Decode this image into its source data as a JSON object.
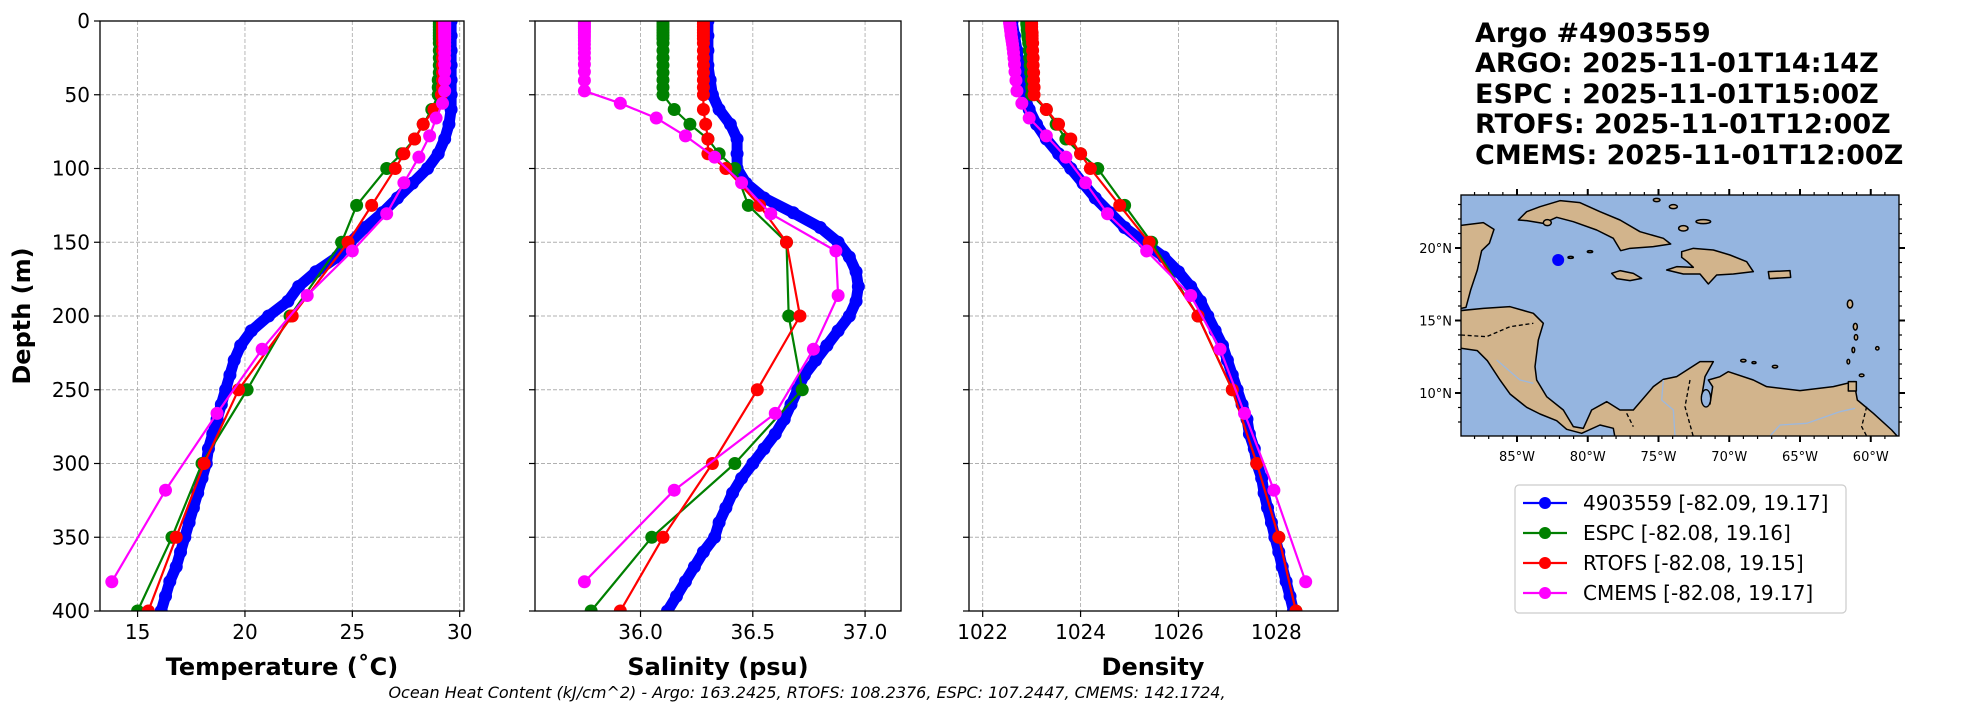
{
  "header": {
    "lines": [
      "Argo #4903559",
      "ARGO: 2025-11-01T14:14Z",
      "ESPC : 2025-11-01T15:00Z",
      "RTOFS: 2025-11-01T12:00Z",
      "CMEMS: 2025-11-01T12:00Z"
    ]
  },
  "caption": "Ocean Heat Content (kJ/cm^2) - Argo: 163.2425,  RTOFS: 108.2376,  ESPC: 107.2447,  CMEMS: 142.1724,",
  "legend": {
    "entries": [
      {
        "label": "4903559 [-82.09, 19.17]",
        "color": "#0000ff"
      },
      {
        "label": "ESPC [-82.08, 19.16]",
        "color": "#008000"
      },
      {
        "label": "RTOFS [-82.08, 19.15]",
        "color": "#ff0000"
      },
      {
        "label": "CMEMS [-82.08, 19.17]",
        "color": "#ff00ff"
      }
    ]
  },
  "map": {
    "lon_range": [
      -89.0,
      -58.0
    ],
    "lat_range": [
      7.0,
      23.7
    ],
    "lon_ticks": [
      -85,
      -80,
      -75,
      -70,
      -65,
      -60
    ],
    "lon_tick_labels": [
      "85°W",
      "80°W",
      "75°W",
      "70°W",
      "65°W",
      "60°W"
    ],
    "lat_ticks": [
      10,
      15,
      20
    ],
    "lat_tick_labels": [
      "10°N",
      "15°N",
      "20°N"
    ],
    "float_position": {
      "lon": -82.09,
      "lat": 19.17,
      "color": "#0000ff"
    },
    "ocean_color": "#95b5e0",
    "land_color": "#d2b48c"
  },
  "chart_data": [
    {
      "type": "line",
      "title": "",
      "xlabel": "Temperature (˚C)",
      "ylabel": "Depth (m)",
      "xlim": [
        13.25,
        30.2
      ],
      "ylim": [
        400,
        0
      ],
      "xticks": [
        15,
        20,
        25,
        30
      ],
      "xtick_labels": [
        "15",
        "20",
        "25",
        "30"
      ],
      "yticks": [
        0,
        50,
        100,
        150,
        200,
        250,
        300,
        350,
        400
      ],
      "ytick_labels": [
        "0",
        "50",
        "100",
        "150",
        "200",
        "250",
        "300",
        "350",
        "400"
      ],
      "grid": true,
      "series": [
        {
          "name": "4903559",
          "color": "#0000ff",
          "depth": [
            0,
            10,
            20,
            30,
            40,
            50,
            60,
            70,
            80,
            90,
            100,
            110,
            120,
            130,
            140,
            150,
            160,
            170,
            180,
            190,
            200,
            210,
            220,
            230,
            240,
            250,
            260,
            270,
            280,
            290,
            300,
            310,
            320,
            330,
            340,
            350,
            360,
            370,
            380,
            390,
            400
          ],
          "values": [
            29.6,
            29.6,
            29.6,
            29.6,
            29.6,
            29.6,
            29.6,
            29.5,
            29.3,
            29.0,
            28.5,
            27.8,
            27.1,
            26.4,
            25.6,
            24.9,
            24.3,
            23.3,
            22.5,
            22.0,
            21.1,
            20.3,
            19.8,
            19.5,
            19.3,
            19.1,
            18.9,
            18.7,
            18.5,
            18.3,
            18.2,
            18.0,
            17.8,
            17.6,
            17.4,
            17.2,
            17.0,
            16.8,
            16.5,
            16.3,
            16.1
          ]
        },
        {
          "name": "ESPC",
          "color": "#008000",
          "depth": [
            0,
            2,
            4,
            6,
            8,
            10,
            12,
            15,
            20,
            25,
            30,
            35,
            40,
            45,
            50,
            60,
            70,
            80,
            90,
            100,
            125,
            150,
            200,
            250,
            300,
            350,
            400
          ],
          "values": [
            29.05,
            29.05,
            29.05,
            29.05,
            29.05,
            29.05,
            29.05,
            29.05,
            29.05,
            29.05,
            29.05,
            29.05,
            29.0,
            29.0,
            29.0,
            28.7,
            28.3,
            27.9,
            27.3,
            26.6,
            25.2,
            24.5,
            22.1,
            20.1,
            18.0,
            16.6,
            15.0
          ]
        },
        {
          "name": "RTOFS",
          "color": "#ff0000",
          "depth": [
            0,
            2,
            4,
            6,
            8,
            10,
            12,
            15,
            20,
            25,
            30,
            35,
            40,
            45,
            50,
            60,
            70,
            80,
            90,
            100,
            125,
            150,
            200,
            250,
            300,
            350,
            400
          ],
          "values": [
            29.2,
            29.2,
            29.2,
            29.2,
            29.2,
            29.2,
            29.2,
            29.2,
            29.2,
            29.2,
            29.2,
            29.2,
            29.2,
            29.2,
            29.15,
            28.8,
            28.3,
            27.9,
            27.4,
            27.0,
            25.9,
            24.8,
            22.2,
            19.7,
            18.1,
            16.8,
            15.5
          ]
        },
        {
          "name": "CMEMS",
          "color": "#ff00ff",
          "depth": [
            0.5,
            1.5,
            2.6,
            3.8,
            5,
            6.4,
            7.9,
            9.6,
            11.4,
            13.5,
            15.8,
            18.5,
            21.6,
            25.2,
            29.4,
            34.4,
            40.3,
            47.4,
            55.8,
            65.8,
            77.9,
            92.3,
            109.7,
            130.7,
            155.9,
            186.1,
            222.5,
            266.0,
            318.1,
            380.2
          ],
          "values": [
            29.3,
            29.3,
            29.3,
            29.3,
            29.3,
            29.3,
            29.3,
            29.3,
            29.3,
            29.3,
            29.3,
            29.3,
            29.3,
            29.3,
            29.3,
            29.3,
            29.3,
            29.3,
            29.2,
            28.9,
            28.6,
            28.1,
            27.4,
            26.6,
            25.0,
            22.9,
            20.8,
            18.7,
            16.3,
            13.8
          ]
        }
      ]
    },
    {
      "type": "line",
      "title": "",
      "xlabel": "Salinity (psu)",
      "ylabel": "",
      "xlim": [
        35.53,
        37.16
      ],
      "ylim": [
        400,
        0
      ],
      "xticks": [
        36.0,
        36.5,
        37.0
      ],
      "xtick_labels": [
        "36.0",
        "36.5",
        "37.0"
      ],
      "yticks": [
        0,
        50,
        100,
        150,
        200,
        250,
        300,
        350,
        400
      ],
      "grid": true,
      "series": [
        {
          "name": "4903559",
          "color": "#0000ff",
          "depth": [
            0,
            10,
            20,
            30,
            40,
            50,
            60,
            70,
            80,
            90,
            100,
            110,
            120,
            130,
            140,
            150,
            160,
            170,
            180,
            190,
            200,
            210,
            220,
            230,
            240,
            250,
            260,
            270,
            280,
            290,
            300,
            310,
            320,
            330,
            340,
            350,
            360,
            370,
            380,
            390,
            400
          ],
          "values": [
            36.3,
            36.3,
            36.3,
            36.3,
            36.31,
            36.32,
            36.35,
            36.4,
            36.43,
            36.43,
            36.43,
            36.47,
            36.55,
            36.68,
            36.8,
            36.88,
            36.93,
            36.96,
            36.97,
            36.96,
            36.93,
            36.88,
            36.83,
            36.78,
            36.73,
            36.7,
            36.67,
            36.64,
            36.6,
            36.55,
            36.5,
            36.45,
            36.41,
            36.38,
            36.35,
            36.33,
            36.28,
            36.24,
            36.2,
            36.16,
            36.12
          ]
        },
        {
          "name": "ESPC",
          "color": "#008000",
          "depth": [
            0,
            2,
            4,
            6,
            8,
            10,
            12,
            15,
            20,
            25,
            30,
            35,
            40,
            45,
            50,
            60,
            70,
            80,
            90,
            100,
            125,
            150,
            200,
            250,
            300,
            350,
            400
          ],
          "values": [
            36.1,
            36.1,
            36.1,
            36.1,
            36.1,
            36.1,
            36.1,
            36.1,
            36.1,
            36.1,
            36.1,
            36.1,
            36.1,
            36.1,
            36.1,
            36.15,
            36.22,
            36.3,
            36.35,
            36.42,
            36.48,
            36.65,
            36.66,
            36.72,
            36.42,
            36.05,
            35.78
          ]
        },
        {
          "name": "RTOFS",
          "color": "#ff0000",
          "depth": [
            0,
            2,
            4,
            6,
            8,
            10,
            12,
            15,
            20,
            25,
            30,
            35,
            40,
            45,
            50,
            60,
            70,
            80,
            90,
            100,
            125,
            150,
            200,
            250,
            300,
            350,
            400
          ],
          "values": [
            36.28,
            36.28,
            36.28,
            36.28,
            36.28,
            36.28,
            36.28,
            36.28,
            36.28,
            36.28,
            36.28,
            36.28,
            36.28,
            36.28,
            36.28,
            36.28,
            36.29,
            36.3,
            36.3,
            36.38,
            36.53,
            36.65,
            36.71,
            36.52,
            36.32,
            36.1,
            35.91
          ]
        },
        {
          "name": "CMEMS",
          "color": "#ff00ff",
          "depth": [
            0.5,
            1.5,
            2.6,
            3.8,
            5,
            6.4,
            7.9,
            9.6,
            11.4,
            13.5,
            15.8,
            18.5,
            21.6,
            25.2,
            29.4,
            34.4,
            40.3,
            47.4,
            55.8,
            65.8,
            77.9,
            92.3,
            109.7,
            130.7,
            155.9,
            186.1,
            222.5,
            266.0,
            318.1,
            380.2
          ],
          "values": [
            35.75,
            35.75,
            35.75,
            35.75,
            35.75,
            35.75,
            35.75,
            35.75,
            35.75,
            35.75,
            35.75,
            35.75,
            35.75,
            35.75,
            35.75,
            35.75,
            35.75,
            35.75,
            35.91,
            36.07,
            36.2,
            36.33,
            36.45,
            36.58,
            36.87,
            36.88,
            36.77,
            36.6,
            36.15,
            35.75
          ]
        }
      ]
    },
    {
      "type": "line",
      "title": "",
      "xlabel": "Density",
      "ylabel": "",
      "xlim": [
        1021.72,
        1029.26
      ],
      "ylim": [
        400,
        0
      ],
      "xticks": [
        1022,
        1024,
        1026,
        1028
      ],
      "xtick_labels": [
        "1022",
        "1024",
        "1026",
        "1028"
      ],
      "yticks": [
        0,
        50,
        100,
        150,
        200,
        250,
        300,
        350,
        400
      ],
      "grid": true,
      "series": [
        {
          "name": "4903559",
          "color": "#0000ff",
          "depth": [
            0,
            10,
            20,
            30,
            40,
            50,
            60,
            70,
            80,
            90,
            100,
            110,
            120,
            130,
            140,
            150,
            160,
            170,
            180,
            190,
            200,
            210,
            220,
            230,
            240,
            250,
            260,
            270,
            280,
            290,
            300,
            310,
            320,
            330,
            340,
            350,
            360,
            370,
            380,
            390,
            400
          ],
          "values": [
            1022.6,
            1022.65,
            1022.7,
            1022.75,
            1022.8,
            1022.85,
            1022.95,
            1023.1,
            1023.3,
            1023.55,
            1023.8,
            1024.05,
            1024.3,
            1024.6,
            1024.9,
            1025.3,
            1025.7,
            1026.0,
            1026.25,
            1026.45,
            1026.6,
            1026.75,
            1026.9,
            1027.0,
            1027.1,
            1027.2,
            1027.3,
            1027.4,
            1027.45,
            1027.55,
            1027.6,
            1027.7,
            1027.75,
            1027.82,
            1027.9,
            1027.97,
            1028.05,
            1028.12,
            1028.2,
            1028.28,
            1028.35
          ]
        },
        {
          "name": "ESPC",
          "color": "#008000",
          "depth": [
            0,
            2,
            4,
            6,
            8,
            10,
            12,
            15,
            20,
            25,
            30,
            35,
            40,
            45,
            50,
            60,
            70,
            80,
            90,
            100,
            125,
            150,
            200,
            250,
            300,
            350,
            400
          ],
          "values": [
            1022.9,
            1022.9,
            1022.91,
            1022.91,
            1022.92,
            1022.92,
            1022.93,
            1022.94,
            1022.95,
            1022.96,
            1022.97,
            1022.98,
            1022.99,
            1023.0,
            1023.0,
            1023.3,
            1023.5,
            1023.7,
            1024.0,
            1024.35,
            1024.9,
            1025.45,
            1026.4,
            1027.1,
            1027.6,
            1028.05,
            1028.4
          ]
        },
        {
          "name": "RTOFS",
          "color": "#ff0000",
          "depth": [
            0,
            2,
            4,
            6,
            8,
            10,
            12,
            15,
            20,
            25,
            30,
            35,
            40,
            45,
            50,
            60,
            70,
            80,
            90,
            100,
            125,
            150,
            200,
            250,
            300,
            350,
            400
          ],
          "values": [
            1023.0,
            1023.0,
            1023.0,
            1023.0,
            1023.01,
            1023.01,
            1023.01,
            1023.02,
            1023.02,
            1023.03,
            1023.03,
            1023.04,
            1023.04,
            1023.05,
            1023.05,
            1023.3,
            1023.55,
            1023.8,
            1024.0,
            1024.2,
            1024.8,
            1025.4,
            1026.4,
            1027.1,
            1027.6,
            1028.05,
            1028.4
          ]
        },
        {
          "name": "CMEMS",
          "color": "#ff00ff",
          "depth": [
            0.5,
            1.5,
            2.6,
            3.8,
            5,
            6.4,
            7.9,
            9.6,
            11.4,
            13.5,
            15.8,
            18.5,
            21.6,
            25.2,
            29.4,
            34.4,
            40.3,
            47.4,
            55.8,
            65.8,
            77.9,
            92.3,
            109.7,
            130.7,
            155.9,
            186.1,
            222.5,
            266.0,
            318.1,
            380.2
          ],
          "values": [
            1022.55,
            1022.55,
            1022.56,
            1022.56,
            1022.57,
            1022.57,
            1022.58,
            1022.58,
            1022.59,
            1022.6,
            1022.61,
            1022.62,
            1022.63,
            1022.64,
            1022.65,
            1022.66,
            1022.68,
            1022.7,
            1022.8,
            1022.95,
            1023.3,
            1023.7,
            1024.1,
            1024.55,
            1025.35,
            1026.25,
            1026.85,
            1027.35,
            1027.95,
            1028.6
          ]
        }
      ]
    }
  ]
}
